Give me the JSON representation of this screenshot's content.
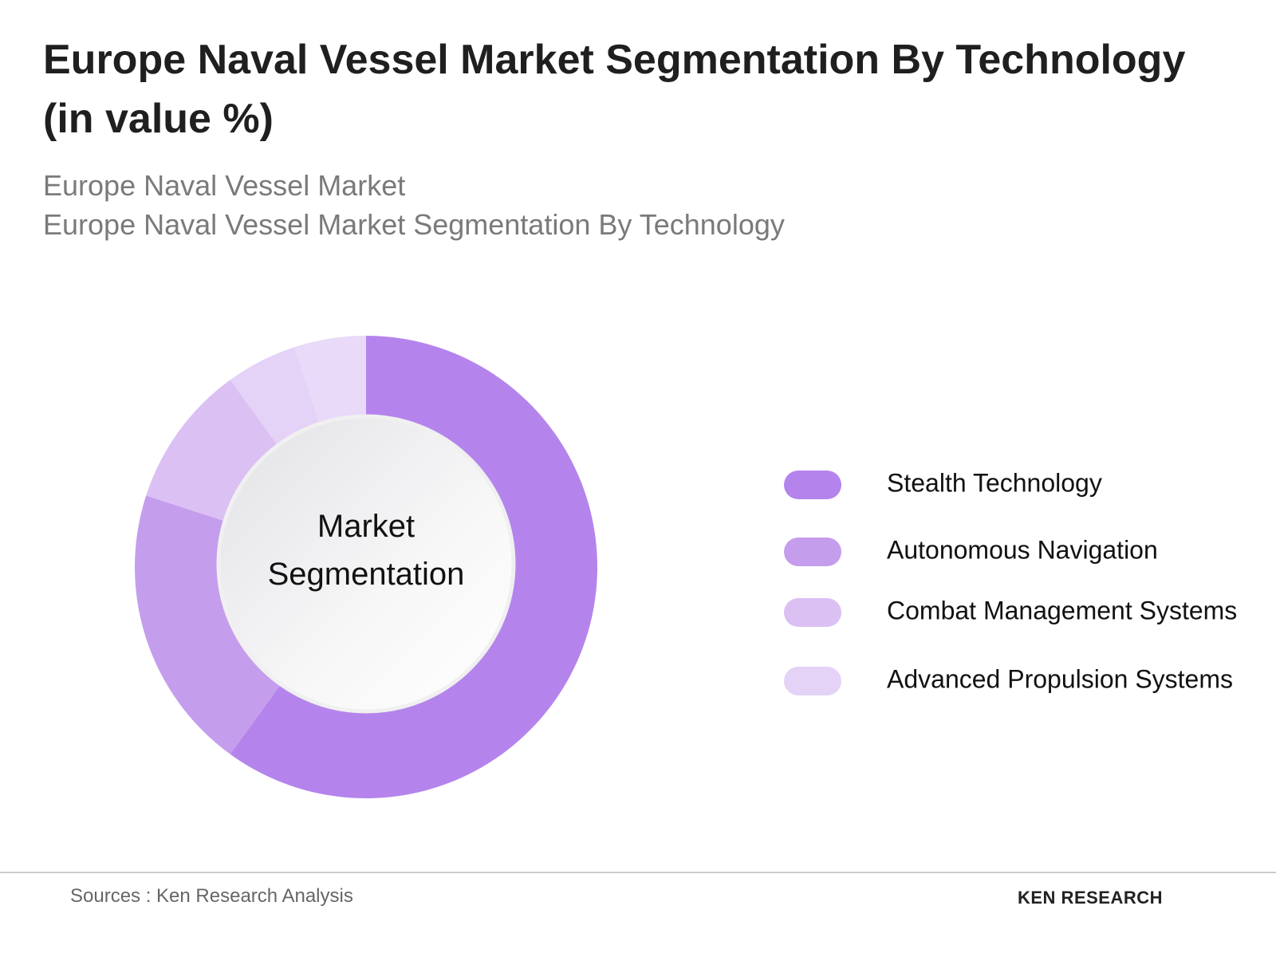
{
  "chart_data": {
    "type": "pie",
    "title": "Europe Naval Vessel Market Segmentation By Technology (in value %)",
    "subtitle": [
      "Europe Naval Vessel Market",
      "Europe Naval Vessel Market Segmentation By Technology"
    ],
    "center_label": "Market Segmentation",
    "categories": [
      "Stealth Technology",
      "Autonomous Navigation",
      "Combat Management Systems",
      "Advanced Propulsion Systems",
      null
    ],
    "values": [
      60,
      20,
      10,
      5,
      5
    ],
    "colors": [
      "#b484ec",
      "#c59ded",
      "#dbc0f4",
      "#e4d2f7",
      "#e8daf8"
    ],
    "source": "Sources : Ken Research Analysis",
    "logo": "KEN RESEARCH"
  }
}
